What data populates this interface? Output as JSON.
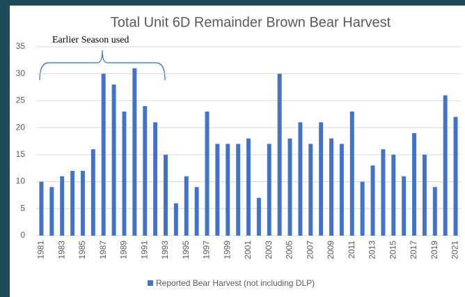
{
  "chart_data": {
    "type": "bar",
    "title": "Total Unit 6D Remainder Brown Bear Harvest",
    "annotation": "Earlier Season used",
    "categories": [
      "1981",
      null,
      "1983",
      null,
      "1985",
      null,
      "1987",
      null,
      "1989",
      null,
      "1991",
      null,
      "1993",
      null,
      "1995",
      null,
      "1997",
      null,
      "1999",
      null,
      "2001",
      null,
      "2003",
      null,
      "2005",
      null,
      "2007",
      null,
      "2009",
      null,
      "2011",
      null,
      "2013",
      null,
      "2015",
      null,
      "2017",
      null,
      "2019",
      null,
      "2021"
    ],
    "series": [
      {
        "name": "Reported Bear Harvest (not including DLP)",
        "color": "#4472c4",
        "values": [
          10,
          9,
          11,
          12,
          12,
          16,
          30,
          28,
          23,
          31,
          24,
          21,
          15,
          6,
          11,
          9,
          23,
          17,
          17,
          17,
          18,
          7,
          17,
          30,
          18,
          21,
          17,
          21,
          18,
          17,
          23,
          10,
          13,
          16,
          15,
          11,
          19,
          15,
          9,
          26,
          22
        ]
      }
    ],
    "ylim": [
      0,
      35
    ],
    "yticks": [
      0,
      5,
      10,
      15,
      20,
      25,
      30,
      35
    ],
    "grid": true,
    "legend": "bottom"
  }
}
